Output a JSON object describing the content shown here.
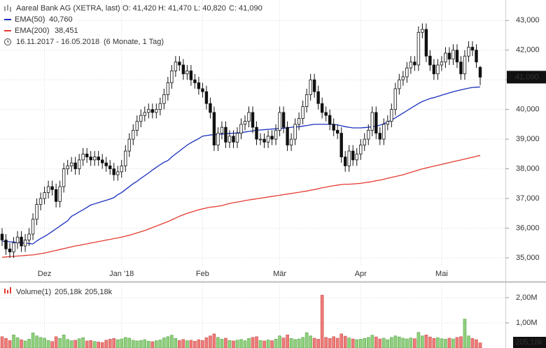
{
  "chart_data": {
    "type": "candlestick",
    "title": "Aareal Bank AG (XETRA, last)",
    "quote": [
      "O: 41,420",
      "H: 41,470",
      "L: 40,820",
      "C: 41,090"
    ],
    "date_range": "16.11.2017 - 16.05.2018",
    "period": "(6 Monate, 1 Tag)",
    "last_price_label": "41,090",
    "up_color": "#ffffff",
    "down_color": "#111111",
    "open": [
      35.8,
      35.6,
      35.3,
      35.2,
      35.5,
      35.7,
      35.4,
      35.6,
      35.8,
      36.3,
      36.8,
      37.0,
      37.2,
      37.4,
      37.3,
      36.9,
      37.4,
      38.0,
      38.1,
      38.2,
      38.0,
      38.3,
      38.5,
      38.4,
      38.3,
      38.4,
      38.3,
      38.2,
      38.1,
      38.0,
      37.8,
      37.9,
      38.1,
      38.6,
      39.0,
      39.3,
      39.6,
      39.8,
      39.9,
      40.0,
      39.9,
      40.0,
      40.2,
      40.5,
      40.9,
      41.3,
      41.6,
      41.5,
      41.2,
      41.3,
      41.0,
      40.9,
      40.7,
      40.6,
      40.2,
      39.9,
      38.8,
      39.2,
      39.4,
      38.9,
      39.1,
      38.9,
      39.2,
      39.5,
      39.6,
      39.9,
      39.4,
      39.0,
      39.0,
      38.9,
      39.1,
      39.0,
      39.3,
      39.9,
      39.4,
      38.8,
      39.0,
      39.5,
      39.7,
      40.1,
      40.5,
      41.0,
      40.6,
      40.2,
      39.9,
      39.8,
      39.5,
      39.3,
      39.2,
      38.4,
      38.1,
      38.6,
      38.3,
      38.5,
      38.8,
      39.0,
      39.3,
      39.9,
      39.2,
      39.0,
      39.5,
      39.6,
      40.0,
      40.7,
      41.0,
      41.1,
      41.4,
      41.6,
      41.5,
      42.6,
      42.7,
      41.8,
      41.5,
      41.2,
      41.5,
      41.6,
      41.9,
      41.7,
      42.0,
      41.6,
      41.2,
      41.8,
      42.1,
      42.0,
      41.42
    ],
    "high": [
      36.0,
      35.8,
      35.5,
      35.7,
      35.9,
      35.9,
      35.8,
      36.0,
      36.5,
      37.0,
      37.2,
      37.4,
      37.6,
      37.6,
      37.5,
      37.6,
      38.2,
      38.3,
      38.4,
      38.4,
      38.5,
      38.7,
      38.7,
      38.6,
      38.6,
      38.6,
      38.5,
      38.4,
      38.3,
      38.2,
      38.1,
      38.3,
      38.8,
      39.2,
      39.5,
      39.8,
      40.0,
      40.1,
      40.2,
      40.2,
      40.2,
      40.4,
      40.7,
      41.1,
      41.5,
      41.8,
      41.8,
      41.7,
      41.5,
      41.5,
      41.2,
      41.1,
      40.9,
      40.8,
      40.4,
      40.1,
      39.4,
      39.6,
      39.6,
      39.3,
      39.3,
      39.4,
      39.7,
      39.8,
      40.1,
      40.1,
      39.6,
      39.2,
      39.2,
      39.3,
      39.3,
      39.5,
      40.1,
      40.1,
      39.6,
      39.2,
      39.7,
      39.9,
      40.3,
      40.7,
      41.2,
      41.2,
      40.8,
      40.4,
      40.1,
      40.0,
      39.7,
      39.5,
      39.4,
      38.6,
      38.8,
      38.8,
      38.7,
      39.0,
      39.2,
      39.5,
      40.1,
      40.1,
      39.4,
      39.7,
      39.8,
      40.2,
      40.9,
      41.2,
      41.3,
      41.6,
      41.8,
      41.8,
      42.8,
      42.9,
      42.9,
      42.0,
      41.7,
      41.7,
      41.8,
      42.1,
      42.1,
      42.2,
      42.2,
      41.8,
      42.0,
      42.3,
      42.3,
      42.2,
      41.47
    ],
    "low": [
      35.4,
      35.1,
      35.0,
      35.0,
      35.3,
      35.2,
      35.2,
      35.4,
      35.6,
      36.1,
      36.6,
      36.8,
      37.0,
      37.1,
      36.7,
      36.7,
      37.2,
      37.8,
      37.9,
      37.8,
      37.8,
      38.1,
      38.2,
      38.1,
      38.1,
      38.1,
      38.0,
      37.9,
      37.8,
      37.6,
      37.6,
      37.7,
      37.9,
      38.4,
      38.8,
      39.1,
      39.4,
      39.6,
      39.7,
      39.7,
      39.7,
      39.8,
      40.0,
      40.3,
      40.7,
      41.1,
      41.3,
      41.0,
      41.0,
      40.8,
      40.7,
      40.5,
      40.4,
      40.0,
      39.7,
      38.6,
      38.6,
      39.0,
      38.7,
      38.7,
      38.7,
      38.7,
      39.0,
      39.3,
      39.4,
      39.2,
      38.8,
      38.8,
      38.7,
      38.7,
      38.8,
      38.8,
      39.1,
      39.2,
      38.6,
      38.6,
      38.8,
      39.3,
      39.5,
      39.9,
      40.3,
      40.4,
      40.0,
      39.7,
      39.6,
      39.3,
      39.1,
      39.0,
      38.2,
      37.9,
      37.9,
      38.1,
      38.1,
      38.3,
      38.6,
      38.8,
      39.1,
      39.0,
      38.8,
      38.8,
      39.3,
      39.4,
      39.8,
      40.5,
      40.8,
      40.9,
      41.2,
      41.3,
      41.3,
      42.4,
      41.6,
      41.3,
      41.0,
      41.0,
      41.3,
      41.4,
      41.5,
      41.5,
      41.4,
      41.0,
      41.0,
      41.6,
      41.8,
      41.4,
      40.82
    ],
    "close": [
      35.6,
      35.3,
      35.2,
      35.5,
      35.7,
      35.4,
      35.6,
      35.8,
      36.3,
      36.8,
      37.0,
      37.2,
      37.4,
      37.3,
      36.9,
      37.4,
      38.0,
      38.1,
      38.2,
      38.0,
      38.3,
      38.5,
      38.4,
      38.3,
      38.4,
      38.3,
      38.2,
      38.1,
      38.0,
      37.8,
      37.9,
      38.1,
      38.6,
      39.0,
      39.3,
      39.6,
      39.8,
      39.9,
      40.0,
      39.9,
      40.0,
      40.2,
      40.5,
      40.9,
      41.3,
      41.6,
      41.5,
      41.2,
      41.3,
      41.0,
      40.9,
      40.7,
      40.6,
      40.2,
      39.9,
      38.8,
      39.2,
      39.4,
      38.9,
      39.1,
      38.9,
      39.2,
      39.5,
      39.6,
      39.9,
      39.4,
      39.0,
      39.0,
      38.9,
      39.1,
      39.0,
      39.3,
      39.9,
      39.4,
      38.8,
      39.0,
      39.5,
      39.7,
      40.1,
      40.5,
      41.0,
      40.6,
      40.2,
      39.9,
      39.8,
      39.5,
      39.3,
      39.2,
      38.4,
      38.1,
      38.6,
      38.3,
      38.5,
      38.8,
      39.0,
      39.3,
      39.9,
      39.2,
      39.0,
      39.5,
      39.6,
      40.0,
      40.7,
      41.0,
      41.1,
      41.4,
      41.6,
      41.5,
      42.6,
      42.7,
      41.8,
      41.5,
      41.2,
      41.5,
      41.6,
      41.9,
      41.7,
      42.0,
      41.6,
      41.2,
      41.8,
      42.1,
      42.0,
      41.6,
      41.09
    ],
    "series": [
      {
        "name": "EMA(50)",
        "color": "#1a2fbf",
        "last_label": "40,760",
        "values": [
          35.56,
          35.55,
          35.54,
          35.53,
          35.52,
          35.51,
          35.5,
          35.48,
          35.47,
          35.57,
          35.65,
          35.72,
          35.8,
          35.89,
          35.98,
          36.07,
          36.16,
          36.25,
          36.4,
          36.47,
          36.55,
          36.62,
          36.7,
          36.78,
          36.82,
          36.86,
          36.9,
          36.94,
          36.98,
          37.03,
          37.13,
          37.2,
          37.3,
          37.4,
          37.5,
          37.58,
          37.68,
          37.77,
          37.86,
          37.96,
          38.05,
          38.14,
          38.22,
          38.28,
          38.4,
          38.5,
          38.6,
          38.7,
          38.8,
          38.88,
          38.95,
          39.02,
          39.1,
          39.12,
          39.14,
          39.15,
          39.16,
          39.17,
          39.18,
          39.19,
          39.2,
          39.21,
          39.22,
          39.24,
          39.26,
          39.28,
          39.3,
          39.31,
          39.32,
          39.33,
          39.34,
          39.35,
          39.36,
          39.37,
          39.38,
          39.4,
          39.41,
          39.42,
          39.44,
          39.46,
          39.48,
          39.5,
          39.5,
          39.5,
          39.5,
          39.5,
          39.5,
          39.48,
          39.45,
          39.42,
          39.4,
          39.38,
          39.38,
          39.38,
          39.39,
          39.4,
          39.42,
          39.44,
          39.47,
          39.52,
          39.58,
          39.64,
          39.72,
          39.8,
          39.88,
          39.96,
          40.04,
          40.12,
          40.2,
          40.27,
          40.32,
          40.37,
          40.4,
          40.44,
          40.48,
          40.52,
          40.56,
          40.6,
          40.63,
          40.66,
          40.69,
          40.72,
          40.74,
          40.75,
          40.76
        ]
      },
      {
        "name": "EMA(200)",
        "color": "#e53b30",
        "last_label": "38,451",
        "values": [
          35.02,
          35.03,
          35.04,
          35.05,
          35.06,
          35.07,
          35.08,
          35.09,
          35.1,
          35.12,
          35.14,
          35.16,
          35.19,
          35.22,
          35.25,
          35.28,
          35.31,
          35.34,
          35.37,
          35.4,
          35.42,
          35.45,
          35.47,
          35.5,
          35.52,
          35.55,
          35.57,
          35.6,
          35.62,
          35.65,
          35.67,
          35.7,
          35.73,
          35.76,
          35.8,
          35.84,
          35.88,
          35.92,
          35.97,
          36.02,
          36.07,
          36.12,
          36.17,
          36.22,
          36.28,
          36.34,
          36.4,
          36.45,
          36.5,
          36.54,
          36.58,
          36.62,
          36.65,
          36.68,
          36.71,
          36.72,
          36.74,
          36.76,
          36.8,
          36.83,
          36.86,
          36.88,
          36.9,
          36.93,
          36.95,
          36.97,
          36.99,
          37.01,
          37.03,
          37.05,
          37.07,
          37.09,
          37.11,
          37.13,
          37.15,
          37.17,
          37.19,
          37.21,
          37.23,
          37.25,
          37.28,
          37.3,
          37.33,
          37.36,
          37.38,
          37.41,
          37.43,
          37.45,
          37.47,
          37.48,
          37.48,
          37.49,
          37.5,
          37.51,
          37.53,
          37.55,
          37.57,
          37.6,
          37.62,
          37.65,
          37.68,
          37.71,
          37.74,
          37.77,
          37.8,
          37.84,
          37.88,
          37.92,
          37.96,
          38.0,
          38.03,
          38.06,
          38.09,
          38.12,
          38.15,
          38.18,
          38.21,
          38.24,
          38.27,
          38.3,
          38.33,
          38.36,
          38.39,
          38.42,
          38.451
        ]
      }
    ],
    "ylim": [
      34.74,
      43.69
    ],
    "yticks": [
      {
        "value": 43,
        "label": "43,000"
      },
      {
        "value": 42,
        "label": "42,000"
      },
      {
        "value": 41,
        "label": "41,000"
      },
      {
        "value": 40,
        "label": "40,000"
      },
      {
        "value": 39,
        "label": "39,000"
      },
      {
        "value": 38,
        "label": "38,000"
      },
      {
        "value": 37,
        "label": "37,000"
      },
      {
        "value": 36,
        "label": "36,000"
      },
      {
        "value": 35,
        "label": "35,000"
      }
    ],
    "xticks": [
      {
        "value": 11,
        "label": "Dez"
      },
      {
        "value": 31,
        "label": "Jan '18"
      },
      {
        "value": 52,
        "label": "Feb"
      },
      {
        "value": 72,
        "label": "Mär"
      },
      {
        "value": 93,
        "label": "Apr"
      },
      {
        "value": 114,
        "label": "Mai"
      }
    ],
    "grid": true,
    "volume": {
      "title": "Volume(1)",
      "labels": [
        "205,18k",
        "205,18k"
      ],
      "label_colors": [
        "#e53b30",
        "#3a8fc9"
      ],
      "last_label": "205,18k",
      "up_color": "#8fd07c",
      "down_color": "#ee7b78",
      "values": [
        450000,
        380000,
        300000,
        520000,
        410000,
        330000,
        280000,
        350000,
        600000,
        480000,
        420000,
        390000,
        300000,
        260000,
        450000,
        380000,
        520000,
        340000,
        290000,
        310000,
        370000,
        410000,
        280000,
        300000,
        260000,
        240000,
        220000,
        310000,
        350000,
        380000,
        330000,
        360000,
        420000,
        390000,
        310000,
        280000,
        300000,
        330000,
        270000,
        250000,
        290000,
        320000,
        400000,
        450000,
        510000,
        380000,
        300000,
        340000,
        290000,
        310000,
        270000,
        330000,
        300000,
        410000,
        480000,
        560000,
        420000,
        350000,
        390000,
        300000,
        280000,
        310000,
        340000,
        290000,
        380000,
        420000,
        450000,
        300000,
        280000,
        320000,
        290000,
        350000,
        480000,
        400000,
        520000,
        380000,
        340000,
        360000,
        420000,
        610000,
        480000,
        390000,
        350000,
        2100000,
        420000,
        380000,
        450000,
        390000,
        560000,
        470000,
        400000,
        360000,
        330000,
        350000,
        380000,
        420000,
        510000,
        440000,
        360000,
        390000,
        330000,
        420000,
        480000,
        440000,
        390000,
        360000,
        400000,
        370000,
        620000,
        480000,
        520000,
        440000,
        380000,
        410000,
        370000,
        350000,
        390000,
        360000,
        420000,
        450000,
        1150000,
        480000,
        380000,
        330000,
        205180
      ],
      "ylim": [
        0,
        2610000
      ],
      "yticks": [
        {
          "value": 2000000,
          "label": "2,00M"
        },
        {
          "value": 1000000,
          "label": "1,00M"
        }
      ]
    }
  }
}
